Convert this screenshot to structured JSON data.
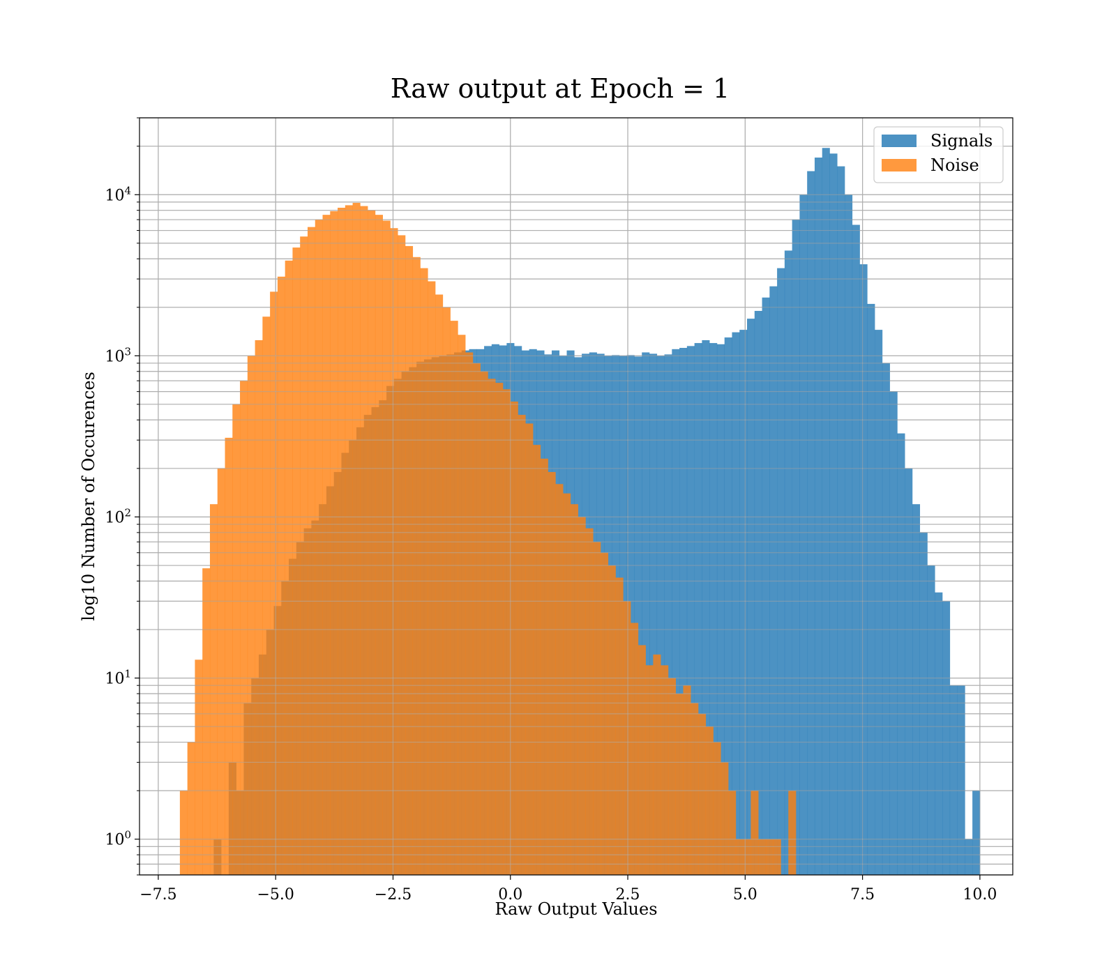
{
  "chart_data": {
    "type": "histogram",
    "title": "Raw output at Epoch = 1",
    "xlabel": "Raw Output Values",
    "ylabel": "log10 Number of Occurences",
    "xlim": [
      -7.9,
      10.7
    ],
    "ylim": [
      0.6,
      30000
    ],
    "yscale": "log",
    "grid": true,
    "legend_position": "top-right",
    "x_ticks": [
      {
        "value": -7.5,
        "label": "−7.5"
      },
      {
        "value": -5.0,
        "label": "−5.0"
      },
      {
        "value": -2.5,
        "label": "−2.5"
      },
      {
        "value": 0.0,
        "label": "0.0"
      },
      {
        "value": 2.5,
        "label": "2.5"
      },
      {
        "value": 5.0,
        "label": "5.0"
      },
      {
        "value": 7.5,
        "label": "7.5"
      },
      {
        "value": 10.0,
        "label": "10.0"
      }
    ],
    "y_ticks": [
      {
        "value": 1,
        "base": "10",
        "exp": "0"
      },
      {
        "value": 10,
        "base": "10",
        "exp": "1"
      },
      {
        "value": 100,
        "base": "10",
        "exp": "2"
      },
      {
        "value": 1000,
        "base": "10",
        "exp": "3"
      },
      {
        "value": 10000,
        "base": "10",
        "exp": "4"
      }
    ],
    "series": [
      {
        "name": "Signals",
        "color": "#1f77b4",
        "opacity": 0.8,
        "bins": [
          [
            -6.32,
            -6.16,
            1
          ],
          [
            -6.0,
            -5.84,
            3
          ],
          [
            -5.84,
            -5.68,
            2
          ],
          [
            -5.68,
            -5.52,
            7
          ],
          [
            -5.52,
            -5.36,
            10
          ],
          [
            -5.36,
            -5.2,
            14
          ],
          [
            -5.2,
            -5.04,
            20
          ],
          [
            -5.04,
            -4.88,
            28
          ],
          [
            -4.88,
            -4.72,
            40
          ],
          [
            -4.72,
            -4.56,
            55
          ],
          [
            -4.56,
            -4.4,
            70
          ],
          [
            -4.4,
            -4.24,
            85
          ],
          [
            -4.24,
            -4.08,
            95
          ],
          [
            -4.08,
            -3.92,
            120
          ],
          [
            -3.92,
            -3.76,
            155
          ],
          [
            -3.76,
            -3.6,
            190
          ],
          [
            -3.6,
            -3.44,
            250
          ],
          [
            -3.44,
            -3.28,
            300
          ],
          [
            -3.28,
            -3.12,
            360
          ],
          [
            -3.12,
            -2.96,
            430
          ],
          [
            -2.96,
            -2.8,
            480
          ],
          [
            -2.8,
            -2.64,
            530
          ],
          [
            -2.64,
            -2.48,
            650
          ],
          [
            -2.48,
            -2.32,
            720
          ],
          [
            -2.32,
            -2.16,
            800
          ],
          [
            -2.16,
            -2.0,
            850
          ],
          [
            -2.0,
            -1.84,
            920
          ],
          [
            -1.84,
            -1.68,
            950
          ],
          [
            -1.68,
            -1.52,
            980
          ],
          [
            -1.52,
            -1.36,
            1000
          ],
          [
            -1.36,
            -1.2,
            1020
          ],
          [
            -1.2,
            -1.04,
            1050
          ],
          [
            -1.04,
            -0.88,
            1080
          ],
          [
            -0.88,
            -0.72,
            1100
          ],
          [
            -0.72,
            -0.56,
            1100
          ],
          [
            -0.56,
            -0.4,
            1150
          ],
          [
            -0.4,
            -0.24,
            1180
          ],
          [
            -0.24,
            -0.08,
            1160
          ],
          [
            -0.08,
            0.08,
            1200
          ],
          [
            0.08,
            0.24,
            1150
          ],
          [
            0.24,
            0.4,
            1080
          ],
          [
            0.4,
            0.56,
            1100
          ],
          [
            0.56,
            0.72,
            1080
          ],
          [
            0.72,
            0.88,
            1020
          ],
          [
            0.88,
            1.04,
            1080
          ],
          [
            1.04,
            1.2,
            1000
          ],
          [
            1.2,
            1.36,
            1080
          ],
          [
            1.36,
            1.52,
            980
          ],
          [
            1.52,
            1.68,
            1030
          ],
          [
            1.68,
            1.84,
            1050
          ],
          [
            1.84,
            2.0,
            1030
          ],
          [
            2.0,
            2.16,
            1000
          ],
          [
            2.16,
            2.32,
            1010
          ],
          [
            2.32,
            2.48,
            1000
          ],
          [
            2.48,
            2.64,
            1010
          ],
          [
            2.64,
            2.8,
            990
          ],
          [
            2.8,
            2.96,
            1050
          ],
          [
            2.96,
            3.12,
            1030
          ],
          [
            3.12,
            3.28,
            1000
          ],
          [
            3.28,
            3.44,
            1020
          ],
          [
            3.44,
            3.6,
            1100
          ],
          [
            3.6,
            3.76,
            1120
          ],
          [
            3.76,
            3.92,
            1150
          ],
          [
            3.92,
            4.08,
            1200
          ],
          [
            4.08,
            4.24,
            1250
          ],
          [
            4.24,
            4.4,
            1200
          ],
          [
            4.4,
            4.56,
            1180
          ],
          [
            4.56,
            4.72,
            1300
          ],
          [
            4.72,
            4.88,
            1400
          ],
          [
            4.88,
            5.04,
            1450
          ],
          [
            5.04,
            5.2,
            1700
          ],
          [
            5.2,
            5.36,
            1900
          ],
          [
            5.36,
            5.52,
            2300
          ],
          [
            5.52,
            5.68,
            2700
          ],
          [
            5.68,
            5.84,
            3500
          ],
          [
            5.84,
            6.0,
            4500
          ],
          [
            6.0,
            6.16,
            7000
          ],
          [
            6.16,
            6.32,
            10000
          ],
          [
            6.32,
            6.48,
            14000
          ],
          [
            6.48,
            6.64,
            17000
          ],
          [
            6.64,
            6.8,
            19500
          ],
          [
            6.8,
            6.96,
            18000
          ],
          [
            6.96,
            7.12,
            15000
          ],
          [
            7.12,
            7.28,
            10000
          ],
          [
            7.28,
            7.44,
            6500
          ],
          [
            7.44,
            7.6,
            3700
          ],
          [
            7.6,
            7.76,
            2100
          ],
          [
            7.76,
            7.92,
            1450
          ],
          [
            7.92,
            8.08,
            900
          ],
          [
            8.08,
            8.24,
            600
          ],
          [
            8.24,
            8.4,
            330
          ],
          [
            8.4,
            8.56,
            200
          ],
          [
            8.56,
            8.72,
            120
          ],
          [
            8.72,
            8.88,
            80
          ],
          [
            8.88,
            9.04,
            50
          ],
          [
            9.04,
            9.2,
            34
          ],
          [
            9.2,
            9.36,
            30
          ],
          [
            9.36,
            9.52,
            9
          ],
          [
            9.52,
            9.68,
            9
          ],
          [
            9.68,
            9.84,
            1
          ],
          [
            9.84,
            10.0,
            2
          ]
        ]
      },
      {
        "name": "Noise",
        "color": "#ff7f0e",
        "opacity": 0.8,
        "bins": [
          [
            -7.04,
            -6.88,
            2
          ],
          [
            -6.88,
            -6.72,
            4
          ],
          [
            -6.72,
            -6.56,
            13
          ],
          [
            -6.56,
            -6.4,
            48
          ],
          [
            -6.4,
            -6.24,
            120
          ],
          [
            -6.24,
            -6.08,
            200
          ],
          [
            -6.08,
            -5.92,
            310
          ],
          [
            -5.92,
            -5.76,
            500
          ],
          [
            -5.76,
            -5.6,
            700
          ],
          [
            -5.6,
            -5.44,
            1000
          ],
          [
            -5.44,
            -5.28,
            1250
          ],
          [
            -5.28,
            -5.12,
            1750
          ],
          [
            -5.12,
            -4.96,
            2500
          ],
          [
            -4.96,
            -4.8,
            3100
          ],
          [
            -4.8,
            -4.64,
            3900
          ],
          [
            -4.64,
            -4.48,
            4700
          ],
          [
            -4.48,
            -4.32,
            5500
          ],
          [
            -4.32,
            -4.16,
            6300
          ],
          [
            -4.16,
            -4.0,
            7000
          ],
          [
            -4.0,
            -3.84,
            7500
          ],
          [
            -3.84,
            -3.68,
            7900
          ],
          [
            -3.68,
            -3.52,
            8300
          ],
          [
            -3.52,
            -3.36,
            8600
          ],
          [
            -3.36,
            -3.2,
            8900
          ],
          [
            -3.2,
            -3.04,
            8500
          ],
          [
            -3.04,
            -2.88,
            8000
          ],
          [
            -2.88,
            -2.72,
            7500
          ],
          [
            -2.72,
            -2.56,
            6900
          ],
          [
            -2.56,
            -2.4,
            6200
          ],
          [
            -2.4,
            -2.24,
            5600
          ],
          [
            -2.24,
            -2.08,
            4800
          ],
          [
            -2.08,
            -1.92,
            4100
          ],
          [
            -1.92,
            -1.76,
            3500
          ],
          [
            -1.76,
            -1.6,
            2900
          ],
          [
            -1.6,
            -1.44,
            2400
          ],
          [
            -1.44,
            -1.28,
            2000
          ],
          [
            -1.28,
            -1.12,
            1650
          ],
          [
            -1.12,
            -0.96,
            1350
          ],
          [
            -0.96,
            -0.8,
            1050
          ],
          [
            -0.8,
            -0.64,
            900
          ],
          [
            -0.64,
            -0.48,
            800
          ],
          [
            -0.48,
            -0.32,
            720
          ],
          [
            -0.32,
            -0.16,
            680
          ],
          [
            -0.16,
            0.0,
            620
          ],
          [
            0.0,
            0.16,
            520
          ],
          [
            0.16,
            0.32,
            430
          ],
          [
            0.32,
            0.48,
            380
          ],
          [
            0.48,
            0.64,
            280
          ],
          [
            0.64,
            0.8,
            230
          ],
          [
            0.8,
            0.96,
            190
          ],
          [
            0.96,
            1.12,
            160
          ],
          [
            1.12,
            1.28,
            140
          ],
          [
            1.28,
            1.44,
            120
          ],
          [
            1.44,
            1.6,
            100
          ],
          [
            1.6,
            1.76,
            85
          ],
          [
            1.76,
            1.92,
            70
          ],
          [
            1.92,
            2.08,
            60
          ],
          [
            2.08,
            2.24,
            50
          ],
          [
            2.24,
            2.4,
            42
          ],
          [
            2.4,
            2.56,
            30
          ],
          [
            2.56,
            2.72,
            22
          ],
          [
            2.72,
            2.88,
            16
          ],
          [
            2.88,
            3.04,
            12
          ],
          [
            3.04,
            3.2,
            14
          ],
          [
            3.2,
            3.36,
            12
          ],
          [
            3.36,
            3.52,
            10
          ],
          [
            3.52,
            3.68,
            8
          ],
          [
            3.68,
            3.84,
            9
          ],
          [
            3.84,
            4.0,
            7
          ],
          [
            4.0,
            4.16,
            6
          ],
          [
            4.16,
            4.32,
            5
          ],
          [
            4.32,
            4.48,
            4
          ],
          [
            4.48,
            4.64,
            3
          ],
          [
            4.64,
            4.8,
            2
          ],
          [
            4.8,
            4.96,
            1
          ],
          [
            4.96,
            5.12,
            1
          ],
          [
            5.12,
            5.28,
            2
          ],
          [
            5.28,
            5.44,
            1
          ],
          [
            5.44,
            5.6,
            1
          ],
          [
            5.6,
            5.76,
            1
          ],
          [
            5.92,
            6.08,
            2
          ]
        ]
      }
    ]
  }
}
